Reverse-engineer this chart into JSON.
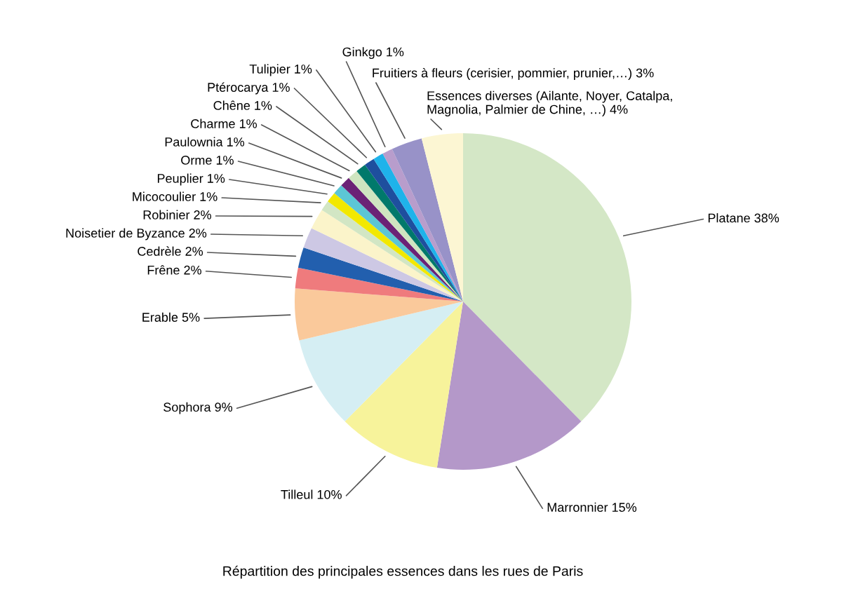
{
  "chart_data": {
    "type": "pie",
    "title": "Répartition des principales essences dans les rues de Paris",
    "categories": [
      "Platane",
      "Marronnier",
      "Tilleul",
      "Sophora",
      "Erable",
      "Frêne",
      "Cedrèle",
      "Noisetier de Byzance",
      "Robinier",
      "Micocoulier",
      "Peuplier",
      "Orme",
      "Paulownia",
      "Charme",
      "Chêne",
      "Ptérocarya",
      "Tulipier",
      "Ginkgo",
      "Fruitiers à fleurs (cerisier, pommier, prunier,…)",
      "Essences diverses (Ailante, Noyer, Catalpa,\nMagnolia, Palmier de Chine, …)"
    ],
    "values": [
      38,
      15,
      10,
      9,
      5,
      2,
      2,
      2,
      2,
      1,
      1,
      1,
      1,
      1,
      1,
      1,
      1,
      1,
      3,
      4
    ],
    "value_labels": [
      "38%",
      "15%",
      "10%",
      "9%",
      "5%",
      "2%",
      "2%",
      "2%",
      "2%",
      "1%",
      "1%",
      "1%",
      "1%",
      "1%",
      "1%",
      "1%",
      "1%",
      "1%",
      "3%",
      "4%"
    ],
    "colors": [
      "#d4e7c6",
      "#b498c9",
      "#f7f39b",
      "#d5eef3",
      "#fac99b",
      "#ef7b7d",
      "#225fae",
      "#cdc8e4",
      "#fbf4ca",
      "#d2e6c4",
      "#f2e800",
      "#5cc6d5",
      "#6b2276",
      "#cfe5c0",
      "#00796b",
      "#1e4f9e",
      "#1fb3ea",
      "#b89dcc",
      "#9892c8",
      "#fcf6d3"
    ]
  }
}
